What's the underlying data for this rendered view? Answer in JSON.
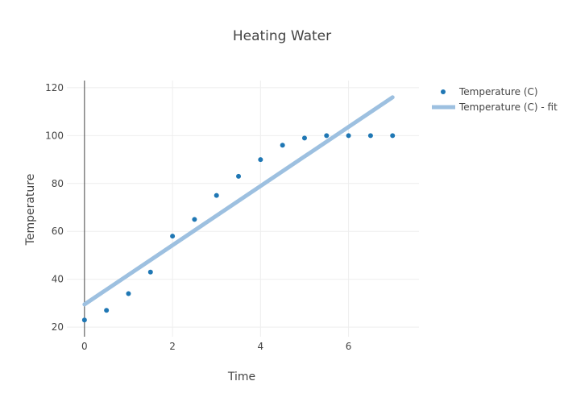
{
  "chart_data": {
    "type": "scatter",
    "title": "Heating Water",
    "xlabel": "Time",
    "ylabel": "Temperature",
    "xlim": [
      -0.4,
      7.6
    ],
    "ylim": [
      16,
      123
    ],
    "x_ticks": [
      0,
      2,
      4,
      6
    ],
    "y_ticks": [
      20,
      40,
      60,
      80,
      100,
      120
    ],
    "grid": true,
    "legend_position": "top-right",
    "colors": {
      "points": "#1f77b4",
      "fit": "#9dc0e0",
      "grid": "#eeeeee",
      "zeroline": "#444444",
      "text": "#444444"
    },
    "series": [
      {
        "name": "Temperature (C)",
        "kind": "markers",
        "x": [
          0,
          0.5,
          1,
          1.5,
          2,
          2.5,
          3,
          3.5,
          4,
          4.5,
          5,
          5.5,
          6,
          6.5,
          7
        ],
        "y": [
          23,
          27,
          34,
          43,
          58,
          65,
          75,
          83,
          90,
          96,
          99,
          100,
          100,
          100,
          100
        ]
      },
      {
        "name": "Temperature (C) - fit",
        "kind": "line",
        "x": [
          0,
          7
        ],
        "y": [
          29.5,
          116
        ]
      }
    ]
  }
}
